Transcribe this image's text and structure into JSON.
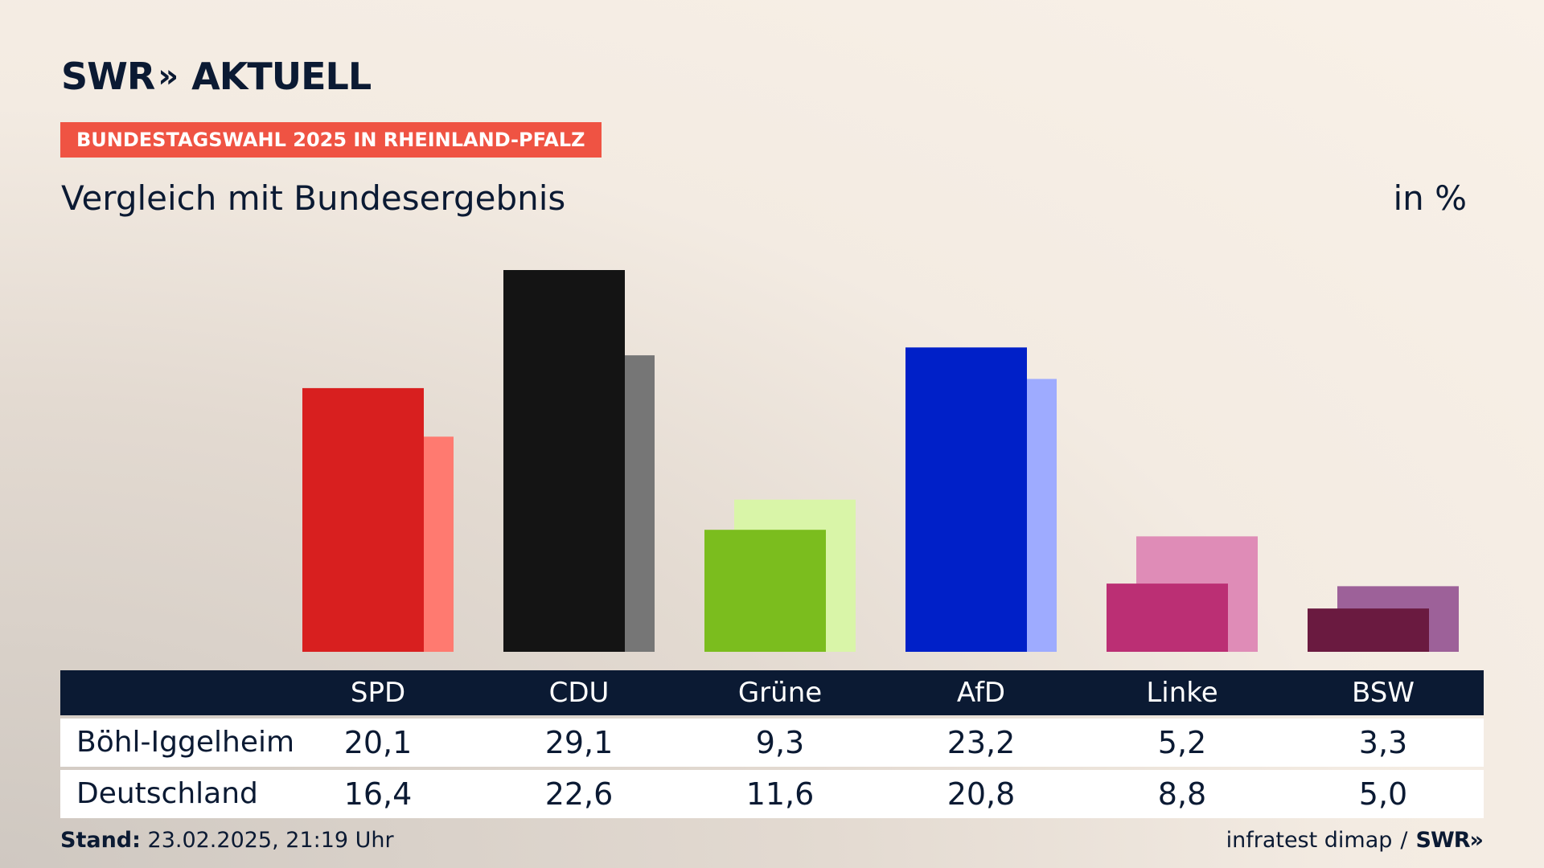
{
  "header": {
    "logo_text": "SWR",
    "logo_chevrons": "»",
    "logo_suffix": "AKTUELL",
    "tag": "BUNDESTAGSWAHL 2025 IN RHEINLAND-PFALZ",
    "subtitle": "Vergleich mit Bundesergebnis",
    "unit": "in %"
  },
  "colors": {
    "navy": "#0b1a33",
    "tag_bg": "#ef5343"
  },
  "chart_data": {
    "type": "bar",
    "categories": [
      "SPD",
      "CDU",
      "Grüne",
      "AfD",
      "Linke",
      "BSW"
    ],
    "series": [
      {
        "name": "Böhl-Iggelheim",
        "values": [
          20.1,
          29.1,
          9.3,
          23.2,
          5.2,
          3.3
        ]
      },
      {
        "name": "Deutschland",
        "values": [
          16.4,
          22.6,
          11.6,
          20.8,
          8.8,
          5.0
        ]
      }
    ],
    "primary_colors": [
      "#d81f1f",
      "#141414",
      "#7bbd1e",
      "#0020c8",
      "#bb2f74",
      "#6a1a40"
    ],
    "secondary_colors": [
      "#ff7a70",
      "#767676",
      "#d9f5a8",
      "#9eabff",
      "#df8cb7",
      "#9d6199"
    ],
    "ylim": [
      0,
      30
    ]
  },
  "table": {
    "headers": [
      "SPD",
      "CDU",
      "Grüne",
      "AfD",
      "Linke",
      "BSW"
    ],
    "rows": [
      {
        "label": "Böhl-Iggelheim",
        "values": [
          "20,1",
          "29,1",
          "9,3",
          "23,2",
          "5,2",
          "3,3"
        ]
      },
      {
        "label": "Deutschland",
        "values": [
          "16,4",
          "22,6",
          "11,6",
          "20,8",
          "8,8",
          "5,0"
        ]
      }
    ]
  },
  "footer": {
    "stand_label": "Stand:",
    "stand_value": "23.02.2025, 21:19 Uhr",
    "source": "infratest dimap",
    "separator": "/",
    "source_logo": "SWR»"
  }
}
